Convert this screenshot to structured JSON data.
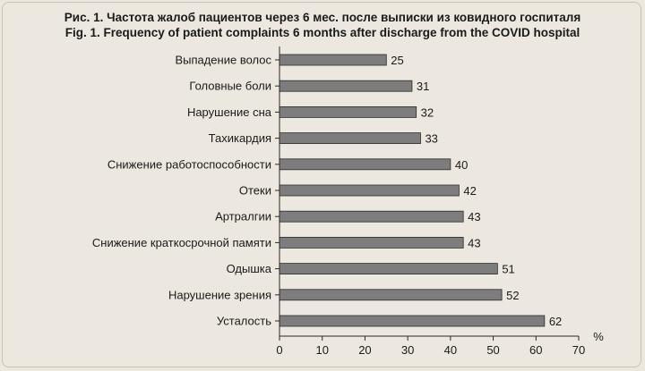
{
  "title_ru": "Рис. 1. Частота жалоб пациентов через 6 мес. после выписки из ковидного госпиталя",
  "title_en": "Fig. 1. Frequency of patient complaints 6 months after discharge from the COVID hospital",
  "chart_data": {
    "type": "bar",
    "orientation": "horizontal",
    "title": "Рис. 1. Частота жалоб пациентов через 6 мес. после выписки из ковидного госпиталя",
    "subtitle": "Fig. 1. Frequency of patient complaints 6 months after discharge from the COVID hospital",
    "categories": [
      "Выпадение волос",
      "Головные боли",
      "Нарушение сна",
      "Тахикардия",
      "Снижение работоспособности",
      "Отеки",
      "Артралгии",
      "Снижение краткосрочной памяти",
      "Одышка",
      "Нарушение зрения",
      "Усталость"
    ],
    "values": [
      25,
      31,
      32,
      33,
      40,
      42,
      43,
      43,
      51,
      52,
      62
    ],
    "xlabel": "%",
    "ylabel": "",
    "xlim": [
      0,
      70
    ],
    "xticks": [
      0,
      10,
      20,
      30,
      40,
      50,
      60,
      70
    ],
    "grid": false,
    "legend": "none",
    "bar_color": "#7d7d7d",
    "bar_edge_color": "#2a2a2a"
  }
}
